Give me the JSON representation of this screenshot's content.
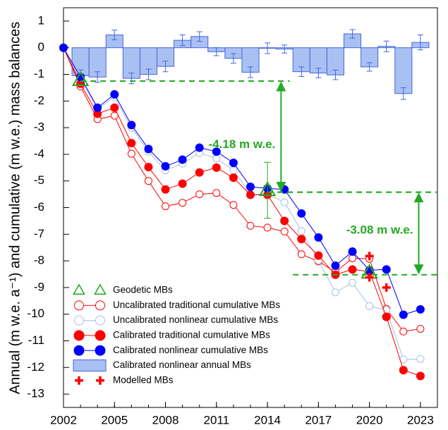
{
  "chart_data": {
    "type": "line",
    "y_label": "Annual (m w.e. a⁻¹) and cumulative (m w.e.) mass balances",
    "x": [
      2002,
      2003,
      2004,
      2005,
      2006,
      2007,
      2008,
      2009,
      2010,
      2011,
      2012,
      2013,
      2014,
      2015,
      2016,
      2017,
      2018,
      2019,
      2020,
      2021,
      2022,
      2023
    ],
    "xlim": [
      2002,
      2024
    ],
    "xticks": [
      2002,
      2005,
      2008,
      2011,
      2014,
      2017,
      2020,
      2023
    ],
    "ylim": [
      -13.5,
      1.5
    ],
    "yticks": [
      1,
      0,
      -1,
      -2,
      -3,
      -4,
      -5,
      -6,
      -7,
      -8,
      -9,
      -10,
      -11,
      -12,
      -13
    ],
    "series": [
      {
        "name": "Geodetic MBs",
        "kind": "triangle",
        "color": "#22aa22",
        "x": [
          2003,
          2014,
          2020
        ],
        "values": [
          -1.22,
          -5.35,
          -8.45
        ],
        "errors": [
          null,
          1.05,
          null
        ]
      },
      {
        "name": "Uncalibrated traditional cumulative MBs",
        "kind": "line",
        "filled": false,
        "color": "#ff0000",
        "values": [
          0,
          -1.45,
          -2.68,
          -2.55,
          -3.98,
          -5.0,
          -5.95,
          -5.82,
          -5.5,
          -5.45,
          -5.9,
          -6.68,
          -6.75,
          -6.9,
          -7.75,
          -8.02,
          -8.42,
          -7.9,
          -7.92,
          -9.8,
          -10.65,
          -10.55
        ]
      },
      {
        "name": "Uncalibrated nonlinear cumulative MBs",
        "kind": "line",
        "filled": false,
        "color": "#a8bde8",
        "values": [
          0,
          -1.15,
          -2.3,
          -1.85,
          -3.0,
          -3.9,
          -4.6,
          -4.35,
          -3.95,
          -4.15,
          -4.6,
          -5.5,
          -5.5,
          -5.8,
          -6.88,
          -7.98,
          -9.18,
          -8.82,
          -9.7,
          -9.85,
          -11.7,
          -11.68
        ]
      },
      {
        "name": "Calibrated traditional cumulative MBs",
        "kind": "line",
        "filled": true,
        "color": "#ff0000",
        "values": [
          0,
          -1.35,
          -2.48,
          -2.25,
          -3.58,
          -4.48,
          -5.32,
          -5.1,
          -4.68,
          -4.5,
          -4.88,
          -5.52,
          -5.52,
          -6.5,
          -7.18,
          -7.8,
          -8.52,
          -8.32,
          -8.4,
          -10.1,
          -12.1,
          -12.32
        ]
      },
      {
        "name": "Calibrated nonlinear cumulative MBs",
        "kind": "line",
        "filled": true,
        "color": "#0000ff",
        "values": [
          0,
          -1.1,
          -2.25,
          -1.75,
          -2.9,
          -3.8,
          -4.45,
          -4.2,
          -3.75,
          -3.9,
          -4.32,
          -5.22,
          -5.28,
          -5.32,
          -6.22,
          -7.12,
          -8.18,
          -7.65,
          -8.35,
          -8.32,
          -10.02,
          -9.82
        ]
      },
      {
        "name": "Calibrated nonlinear annual MBs",
        "kind": "bar",
        "color": "#a9c0f2",
        "values": [
          null,
          -1.05,
          -1.1,
          0.48,
          -1.15,
          -1.0,
          -0.7,
          0.28,
          0.42,
          -0.15,
          -0.4,
          -0.92,
          -0.02,
          -0.05,
          -0.9,
          -0.95,
          -1.02,
          0.52,
          -0.72,
          0.05,
          -1.72,
          0.2
        ],
        "errors": [
          null,
          0.22,
          0.2,
          0.18,
          0.2,
          0.2,
          0.2,
          0.2,
          0.18,
          0.15,
          0.18,
          0.2,
          0.2,
          0.15,
          0.18,
          0.18,
          0.18,
          0.16,
          0.16,
          0.2,
          0.22,
          0.28
        ]
      },
      {
        "name": "Modelled MBs",
        "kind": "cross",
        "color": "#ff0000",
        "x": [
          2020,
          2020,
          2021,
          2021
        ],
        "values": [
          -7.82,
          -8.62,
          -9.0,
          -10.1
        ]
      }
    ],
    "annotations": [
      {
        "text": "-4.18 m w.e.",
        "x": 2014.8,
        "from": -1.25,
        "to": -5.42
      },
      {
        "text": "-3.08 m w.e.",
        "x": 2022.9,
        "from": -5.42,
        "to": -8.52
      }
    ]
  }
}
